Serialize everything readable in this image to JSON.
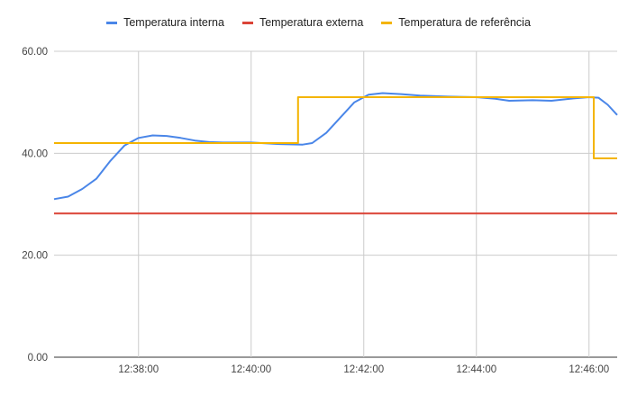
{
  "chart_data": {
    "type": "line",
    "title": "",
    "xlabel": "",
    "ylabel": "",
    "x_range_minutes": [
      "12:36:30",
      "12:46:30"
    ],
    "x_ticks": [
      "12:38:00",
      "12:40:00",
      "12:42:00",
      "12:44:00",
      "12:46:00"
    ],
    "y_ticks": [
      "0.00",
      "20.00",
      "40.00",
      "60.00"
    ],
    "ylim": [
      0,
      60
    ],
    "grid": true,
    "legend_position": "top",
    "series": [
      {
        "name": "Temperatura interna",
        "color": "#4a86e8",
        "points": [
          [
            "12:36:30",
            31.0
          ],
          [
            "12:36:45",
            31.5
          ],
          [
            "12:37:00",
            33.0
          ],
          [
            "12:37:15",
            35.0
          ],
          [
            "12:37:30",
            38.5
          ],
          [
            "12:37:45",
            41.5
          ],
          [
            "12:38:00",
            43.0
          ],
          [
            "12:38:15",
            43.5
          ],
          [
            "12:38:30",
            43.4
          ],
          [
            "12:38:45",
            43.0
          ],
          [
            "12:39:00",
            42.5
          ],
          [
            "12:39:15",
            42.2
          ],
          [
            "12:39:30",
            42.1
          ],
          [
            "12:40:00",
            42.1
          ],
          [
            "12:40:30",
            41.8
          ],
          [
            "12:40:55",
            41.7
          ],
          [
            "12:41:05",
            42.0
          ],
          [
            "12:41:20",
            44.0
          ],
          [
            "12:41:35",
            47.0
          ],
          [
            "12:41:50",
            50.0
          ],
          [
            "12:42:05",
            51.5
          ],
          [
            "12:42:20",
            51.8
          ],
          [
            "12:42:40",
            51.6
          ],
          [
            "12:43:00",
            51.3
          ],
          [
            "12:43:30",
            51.1
          ],
          [
            "12:44:00",
            51.0
          ],
          [
            "12:44:20",
            50.7
          ],
          [
            "12:44:35",
            50.3
          ],
          [
            "12:45:00",
            50.4
          ],
          [
            "12:45:20",
            50.3
          ],
          [
            "12:45:40",
            50.7
          ],
          [
            "12:46:00",
            51.0
          ],
          [
            "12:46:10",
            50.9
          ],
          [
            "12:46:20",
            49.5
          ],
          [
            "12:46:30",
            47.5
          ]
        ]
      },
      {
        "name": "Temperatura externa",
        "color": "#db4437",
        "points": [
          [
            "12:36:30",
            28.2
          ],
          [
            "12:46:30",
            28.2
          ]
        ]
      },
      {
        "name": "Temperatura de referência",
        "color": "#f4b400",
        "points": [
          [
            "12:36:30",
            42.0
          ],
          [
            "12:40:50",
            42.0
          ],
          [
            "12:40:50",
            51.0
          ],
          [
            "12:46:05",
            51.0
          ],
          [
            "12:46:05",
            39.0
          ],
          [
            "12:46:30",
            39.0
          ]
        ]
      }
    ]
  }
}
